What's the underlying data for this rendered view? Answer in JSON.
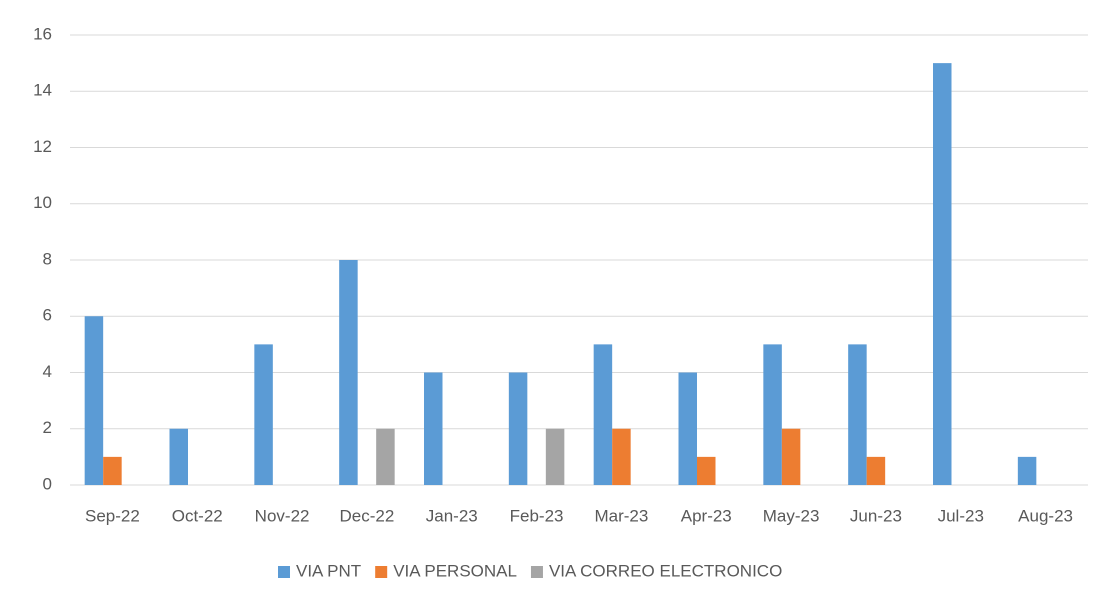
{
  "chart_data": {
    "type": "bar",
    "categories": [
      "Sep-22",
      "Oct-22",
      "Nov-22",
      "Dec-22",
      "Jan-23",
      "Feb-23",
      "Mar-23",
      "Apr-23",
      "May-23",
      "Jun-23",
      "Jul-23",
      "Aug-23"
    ],
    "series": [
      {
        "name": "VIA PNT",
        "color": "#5b9bd5",
        "values": [
          6,
          2,
          5,
          8,
          4,
          4,
          5,
          4,
          5,
          5,
          15,
          1
        ]
      },
      {
        "name": "VIA PERSONAL",
        "color": "#ed7d31",
        "values": [
          1,
          0,
          0,
          0,
          0,
          0,
          2,
          1,
          2,
          1,
          0,
          0
        ]
      },
      {
        "name": "VIA CORREO ELECTRONICO",
        "color": "#a5a5a5",
        "values": [
          0,
          0,
          0,
          2,
          0,
          2,
          0,
          0,
          0,
          0,
          0,
          0
        ]
      }
    ],
    "ylim": [
      0,
      16
    ],
    "yticks": [
      0,
      2,
      4,
      6,
      8,
      10,
      12,
      14,
      16
    ],
    "grid": true,
    "legend": "bottom"
  }
}
